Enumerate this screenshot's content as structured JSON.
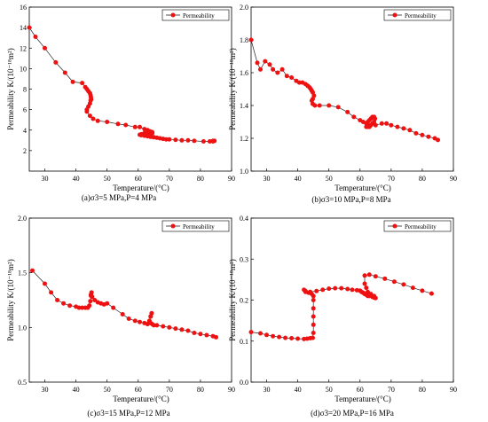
{
  "chart_data": [
    {
      "type": "line",
      "caption": "(a)σ3=5 MPa,P=4 MPa",
      "xlabel": "Temperature/(°C)",
      "ylabel": "Permeability K/(10⁻¹⁸m²)",
      "xlim": [
        25,
        90
      ],
      "ylim": [
        0,
        16
      ],
      "xticks": [
        "30",
        "40",
        "50",
        "60",
        "70",
        "80",
        "90"
      ],
      "yticks": [
        "2",
        "4",
        "6",
        "8",
        "10",
        "12",
        "14",
        "16"
      ],
      "legend": "top-right",
      "grid": false,
      "series": [
        {
          "name": "Permeability",
          "x": [
            25,
            27,
            30,
            33.5,
            36.5,
            39,
            42,
            43,
            43.5,
            44,
            44.5,
            44.7,
            44.8,
            44.9,
            44.7,
            44.5,
            44,
            43.5,
            43.5,
            44.5,
            45.5,
            47,
            50,
            53.5,
            56,
            59,
            60.5,
            62,
            63,
            63.5,
            64,
            64.5,
            64.5,
            64,
            63,
            62,
            61,
            60.5,
            61,
            62,
            63,
            64,
            65,
            66,
            67,
            68,
            69,
            70,
            72,
            74,
            76,
            78,
            81,
            83,
            84,
            84.5,
            84
          ],
          "y": [
            14,
            13.1,
            12,
            10.6,
            9.6,
            8.7,
            8.6,
            8.2,
            8.0,
            7.8,
            7.6,
            7.4,
            7.2,
            7.0,
            6.9,
            6.6,
            6.3,
            6.0,
            5.8,
            5.4,
            5.1,
            4.9,
            4.8,
            4.6,
            4.5,
            4.3,
            4.3,
            4.1,
            4.0,
            3.9,
            3.85,
            3.8,
            3.7,
            3.7,
            3.7,
            3.7,
            3.6,
            3.55,
            3.5,
            3.45,
            3.4,
            3.35,
            3.3,
            3.25,
            3.2,
            3.15,
            3.1,
            3.1,
            3.05,
            3.0,
            3.0,
            2.95,
            2.9,
            2.9,
            2.9,
            2.95,
            2.95
          ]
        }
      ]
    },
    {
      "type": "line",
      "caption": "(b)σ3=10 MPa,P=8 MPa",
      "xlabel": "Temperature/(°C)",
      "ylabel": "Permeability K/(10⁻¹⁸m²)",
      "xlim": [
        25,
        90
      ],
      "ylim": [
        1.0,
        2.0
      ],
      "xticks": [
        "30",
        "40",
        "50",
        "60",
        "70",
        "80",
        "90"
      ],
      "yticks": [
        "1.0",
        "1.2",
        "1.4",
        "1.6",
        "1.8",
        "2.0"
      ],
      "legend": "top-right",
      "grid": false,
      "series": [
        {
          "name": "Permeability",
          "x": [
            25,
            27,
            28,
            29.5,
            31,
            32,
            33.5,
            35,
            36.5,
            38,
            39.5,
            40.5,
            41.5,
            42.5,
            43.2,
            43.8,
            44.2,
            44.5,
            44.8,
            45.2,
            44.8,
            44.5,
            44.8,
            45.5,
            47,
            50,
            53,
            56,
            58,
            60,
            61,
            62,
            62.5,
            63,
            63.5,
            64,
            64.5,
            64.8,
            64.5,
            64,
            63.5,
            63,
            62.5,
            62,
            63,
            65,
            67,
            68.5,
            70,
            72,
            74,
            76,
            78,
            80,
            82,
            84,
            85
          ],
          "y": [
            1.8,
            1.66,
            1.62,
            1.67,
            1.65,
            1.62,
            1.6,
            1.62,
            1.58,
            1.57,
            1.55,
            1.54,
            1.54,
            1.53,
            1.52,
            1.51,
            1.5,
            1.49,
            1.48,
            1.46,
            1.44,
            1.43,
            1.41,
            1.4,
            1.4,
            1.4,
            1.39,
            1.36,
            1.33,
            1.31,
            1.3,
            1.29,
            1.3,
            1.31,
            1.32,
            1.33,
            1.33,
            1.32,
            1.3,
            1.29,
            1.28,
            1.27,
            1.27,
            1.27,
            1.28,
            1.28,
            1.29,
            1.29,
            1.28,
            1.27,
            1.26,
            1.25,
            1.23,
            1.22,
            1.21,
            1.2,
            1.19
          ]
        }
      ]
    },
    {
      "type": "line",
      "caption": "(c)σ3=15 MPa,P=12 MPa",
      "xlabel": "Temperature/(°C)",
      "ylabel": "Permeability K/(10⁻¹⁸m²)",
      "xlim": [
        25,
        90
      ],
      "ylim": [
        0.5,
        2.0
      ],
      "xticks": [
        "30",
        "40",
        "50",
        "60",
        "70",
        "80",
        "90"
      ],
      "yticks": [
        "0.5",
        "1.0",
        "1.5",
        "2.0"
      ],
      "legend": "top-right",
      "grid": false,
      "series": [
        {
          "name": "Permeability",
          "x": [
            26,
            30,
            32,
            34,
            36,
            38,
            40,
            41,
            42,
            43,
            43.8,
            44.3,
            44.6,
            44.8,
            45,
            44.8,
            45.2,
            46,
            47,
            48,
            49,
            50,
            52,
            55,
            57,
            59,
            60.5,
            62,
            63,
            63.5,
            64,
            64.3,
            64,
            63.6,
            64,
            64.5,
            65,
            66,
            68,
            70,
            72,
            74,
            76,
            78,
            80,
            82,
            84,
            85
          ],
          "y": [
            1.52,
            1.4,
            1.32,
            1.25,
            1.22,
            1.2,
            1.19,
            1.18,
            1.18,
            1.18,
            1.18,
            1.2,
            1.24,
            1.3,
            1.32,
            1.29,
            1.28,
            1.25,
            1.23,
            1.22,
            1.21,
            1.22,
            1.18,
            1.12,
            1.08,
            1.06,
            1.05,
            1.04,
            1.03,
            1.04,
            1.1,
            1.13,
            1.1,
            1.06,
            1.04,
            1.03,
            1.02,
            1.02,
            1.01,
            1.0,
            0.99,
            0.98,
            0.97,
            0.95,
            0.94,
            0.93,
            0.92,
            0.91
          ]
        }
      ]
    },
    {
      "type": "line",
      "caption": "(d)σ3=20 MPa,P=16 MPa",
      "xlabel": "Temperature/(°C)",
      "ylabel": "Permeability K/(10⁻¹⁸m²)",
      "xlim": [
        25,
        90
      ],
      "ylim": [
        0.0,
        0.4
      ],
      "xticks": [
        "30",
        "40",
        "50",
        "60",
        "70",
        "80",
        "90"
      ],
      "yticks": [
        "0.0",
        "0.1",
        "0.2",
        "0.3",
        "0.4"
      ],
      "legend": "top-right",
      "grid": false,
      "series": [
        {
          "name": "Permeability",
          "x": [
            25,
            28,
            30,
            32,
            34,
            36,
            38,
            40,
            42,
            43,
            44,
            44.8,
            45,
            45,
            45,
            45,
            45,
            45,
            44.5,
            43.5,
            42.5,
            42,
            42.5,
            44,
            46,
            48,
            50,
            52,
            54,
            56,
            57.5,
            59,
            60,
            60.5,
            61,
            61.5,
            62,
            62.5,
            63,
            64,
            64.5,
            65,
            64.5,
            63.5,
            62.5,
            62,
            61.5,
            61.5,
            63,
            65,
            68,
            71,
            74,
            77,
            80,
            83
          ],
          "y": [
            0.122,
            0.119,
            0.115,
            0.112,
            0.11,
            0.108,
            0.107,
            0.106,
            0.105,
            0.106,
            0.107,
            0.108,
            0.12,
            0.14,
            0.16,
            0.18,
            0.2,
            0.21,
            0.215,
            0.218,
            0.22,
            0.225,
            0.222,
            0.22,
            0.222,
            0.225,
            0.228,
            0.229,
            0.229,
            0.227,
            0.225,
            0.224,
            0.223,
            0.22,
            0.218,
            0.215,
            0.213,
            0.21,
            0.21,
            0.208,
            0.206,
            0.205,
            0.21,
            0.215,
            0.22,
            0.23,
            0.24,
            0.26,
            0.262,
            0.258,
            0.252,
            0.245,
            0.238,
            0.23,
            0.223,
            0.216
          ]
        }
      ]
    }
  ]
}
